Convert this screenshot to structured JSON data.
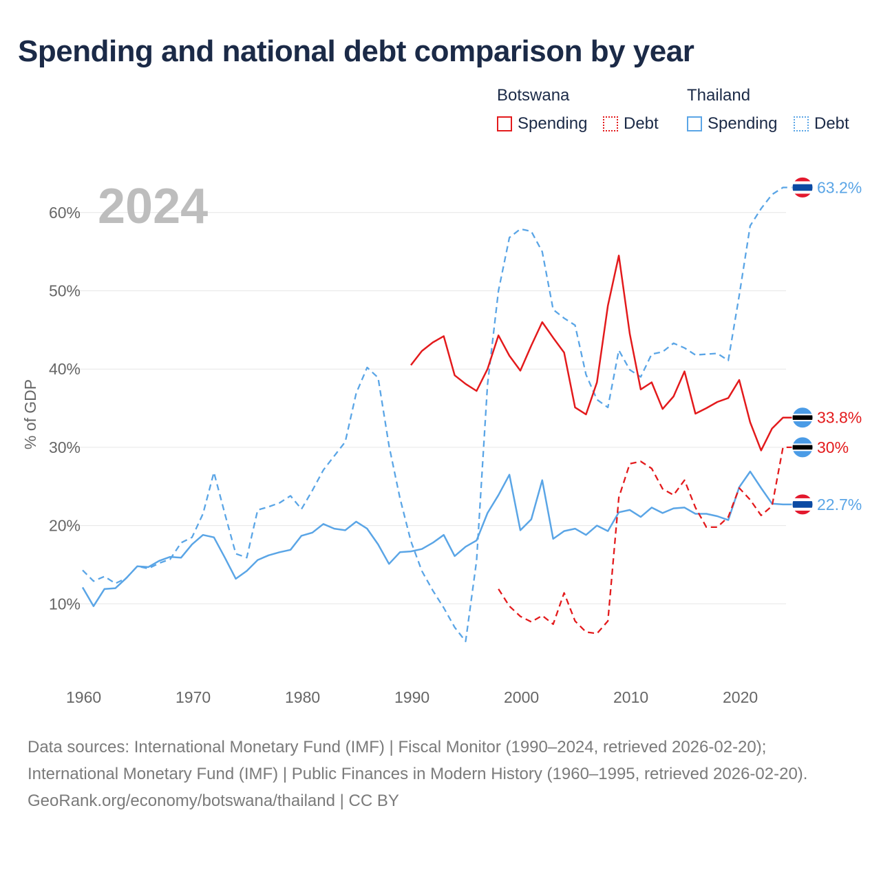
{
  "title": "Spending and national debt comparison by year",
  "legend": {
    "groups": [
      {
        "name": "Botswana",
        "items": [
          {
            "label": "Spending",
            "color": "#e31a1c",
            "style": "solid"
          },
          {
            "label": "Debt",
            "color": "#e31a1c",
            "style": "dotted"
          }
        ]
      },
      {
        "name": "Thailand",
        "items": [
          {
            "label": "Spending",
            "color": "#5aa5e6",
            "style": "solid"
          },
          {
            "label": "Debt",
            "color": "#5aa5e6",
            "style": "dotted"
          }
        ]
      }
    ]
  },
  "year_overlay": "2024",
  "chart_data": {
    "type": "line",
    "title": "Spending and national debt comparison by year",
    "xlabel": "",
    "ylabel": "% of GDP",
    "xlim": [
      1958,
      2025
    ],
    "ylim": [
      0,
      67
    ],
    "x_ticks": [
      1960,
      1970,
      1980,
      1990,
      2000,
      2010,
      2020
    ],
    "y_ticks": [
      10,
      20,
      30,
      40,
      50,
      60
    ],
    "y_tick_labels": [
      "10%",
      "20%",
      "30%",
      "40%",
      "50%",
      "60%"
    ],
    "grid": true,
    "series": [
      {
        "name": "Thailand Debt",
        "country": "Thailand",
        "metric": "Debt",
        "color": "#5aa5e6",
        "dash": "dashed",
        "x": [
          1960,
          1961,
          1962,
          1963,
          1964,
          1965,
          1966,
          1967,
          1968,
          1969,
          1970,
          1971,
          1972,
          1973,
          1974,
          1975,
          1976,
          1977,
          1978,
          1979,
          1980,
          1981,
          1982,
          1983,
          1984,
          1985,
          1986,
          1987,
          1988,
          1989,
          1990,
          1991,
          1992,
          1993,
          1994,
          1995,
          1996,
          1997,
          1998,
          1999,
          2000,
          2001,
          2002,
          2003,
          2004,
          2005,
          2006,
          2007,
          2008,
          2009,
          2010,
          2011,
          2012,
          2013,
          2014,
          2015,
          2016,
          2017,
          2018,
          2019,
          2020,
          2021,
          2022,
          2023,
          2024
        ],
        "values": [
          14.3,
          12.9,
          13.5,
          12.6,
          13.3,
          14.8,
          14.5,
          15.2,
          15.7,
          17.8,
          18.5,
          21.5,
          26.8,
          21.5,
          16.4,
          15.9,
          22.0,
          22.4,
          22.9,
          23.8,
          22.1,
          24.5,
          27.1,
          28.9,
          30.7,
          36.9,
          40.2,
          38.9,
          30.2,
          23.5,
          18.0,
          14.2,
          11.7,
          9.5,
          7.0,
          5.2,
          15.5,
          38.0,
          50.0,
          56.8,
          57.9,
          57.6,
          55.0,
          47.6,
          46.5,
          45.6,
          39.3,
          36.1,
          35.1,
          42.4,
          39.9,
          39.0,
          41.9,
          42.2,
          43.3,
          42.7,
          41.8,
          41.9,
          42.0,
          41.1,
          49.4,
          58.3,
          60.5,
          62.3,
          63.2
        ],
        "end_label": "63.2%",
        "flag": "thailand"
      },
      {
        "name": "Thailand Spending",
        "country": "Thailand",
        "metric": "Spending",
        "color": "#5aa5e6",
        "dash": "solid",
        "x": [
          1960,
          1961,
          1962,
          1963,
          1964,
          1965,
          1966,
          1967,
          1968,
          1969,
          1970,
          1971,
          1972,
          1973,
          1974,
          1975,
          1976,
          1977,
          1978,
          1979,
          1980,
          1981,
          1982,
          1983,
          1984,
          1985,
          1986,
          1987,
          1988,
          1989,
          1990,
          1991,
          1992,
          1993,
          1994,
          1995,
          1996,
          1997,
          1998,
          1999,
          2000,
          2001,
          2002,
          2003,
          2004,
          2005,
          2006,
          2007,
          2008,
          2009,
          2010,
          2011,
          2012,
          2013,
          2014,
          2015,
          2016,
          2017,
          2018,
          2019,
          2020,
          2021,
          2022,
          2023,
          2024
        ],
        "values": [
          12.1,
          9.7,
          11.9,
          12.0,
          13.3,
          14.8,
          14.7,
          15.5,
          16.0,
          15.9,
          17.6,
          18.8,
          18.5,
          15.9,
          13.2,
          14.2,
          15.6,
          16.2,
          16.6,
          16.9,
          18.7,
          19.1,
          20.2,
          19.6,
          19.4,
          20.5,
          19.6,
          17.6,
          15.1,
          16.6,
          16.7,
          17.0,
          17.8,
          18.8,
          16.1,
          17.3,
          18.1,
          21.6,
          23.9,
          26.5,
          19.4,
          20.8,
          25.8,
          18.3,
          19.3,
          19.6,
          18.8,
          20.0,
          19.3,
          21.7,
          22.0,
          21.1,
          22.3,
          21.6,
          22.2,
          22.3,
          21.5,
          21.5,
          21.2,
          20.7,
          24.9,
          26.9,
          24.8,
          22.8,
          22.7
        ],
        "end_label": "22.7%",
        "flag": "thailand"
      },
      {
        "name": "Botswana Spending",
        "country": "Botswana",
        "metric": "Spending",
        "color": "#e31a1c",
        "dash": "solid",
        "x": [
          1990,
          1991,
          1992,
          1993,
          1994,
          1995,
          1996,
          1997,
          1998,
          1999,
          2000,
          2001,
          2002,
          2003,
          2004,
          2005,
          2006,
          2007,
          2008,
          2009,
          2010,
          2011,
          2012,
          2013,
          2014,
          2015,
          2016,
          2017,
          2018,
          2019,
          2020,
          2021,
          2022,
          2023,
          2024
        ],
        "values": [
          40.5,
          42.3,
          43.4,
          44.2,
          39.2,
          38.1,
          37.2,
          40.0,
          44.3,
          41.7,
          39.8,
          43.0,
          46.0,
          44.0,
          42.1,
          35.1,
          34.2,
          38.3,
          48.1,
          54.5,
          44.5,
          37.4,
          38.3,
          34.9,
          36.5,
          39.7,
          34.3,
          35.0,
          35.8,
          36.3,
          38.6,
          33.2,
          29.6,
          32.4,
          33.8
        ],
        "end_label": "33.8%",
        "flag": "botswana"
      },
      {
        "name": "Botswana Debt",
        "country": "Botswana",
        "metric": "Debt",
        "color": "#e31a1c",
        "dash": "dashed",
        "x": [
          1998,
          1999,
          2000,
          2001,
          2002,
          2003,
          2004,
          2005,
          2006,
          2007,
          2008,
          2009,
          2010,
          2011,
          2012,
          2013,
          2014,
          2015,
          2016,
          2017,
          2018,
          2019,
          2020,
          2021,
          2022,
          2023,
          2024
        ],
        "values": [
          11.9,
          9.7,
          8.4,
          7.7,
          8.5,
          7.4,
          11.4,
          7.8,
          6.4,
          6.2,
          7.8,
          23.6,
          27.9,
          28.2,
          27.3,
          24.7,
          23.9,
          25.8,
          22.3,
          19.8,
          19.8,
          21.1,
          24.8,
          23.3,
          21.3,
          22.5,
          30.0
        ],
        "end_label": "30%",
        "flag": "botswana"
      }
    ]
  },
  "source": {
    "line1": "Data sources: International Monetary Fund (IMF) | Fiscal Monitor (1990–2024, retrieved 2026-02-20); International Monetary Fund (IMF) | Public Finances in Modern History (1960–1995, retrieved 2026-02-20).",
    "line2": "GeoRank.org/economy/botswana/thailand | CC BY"
  }
}
